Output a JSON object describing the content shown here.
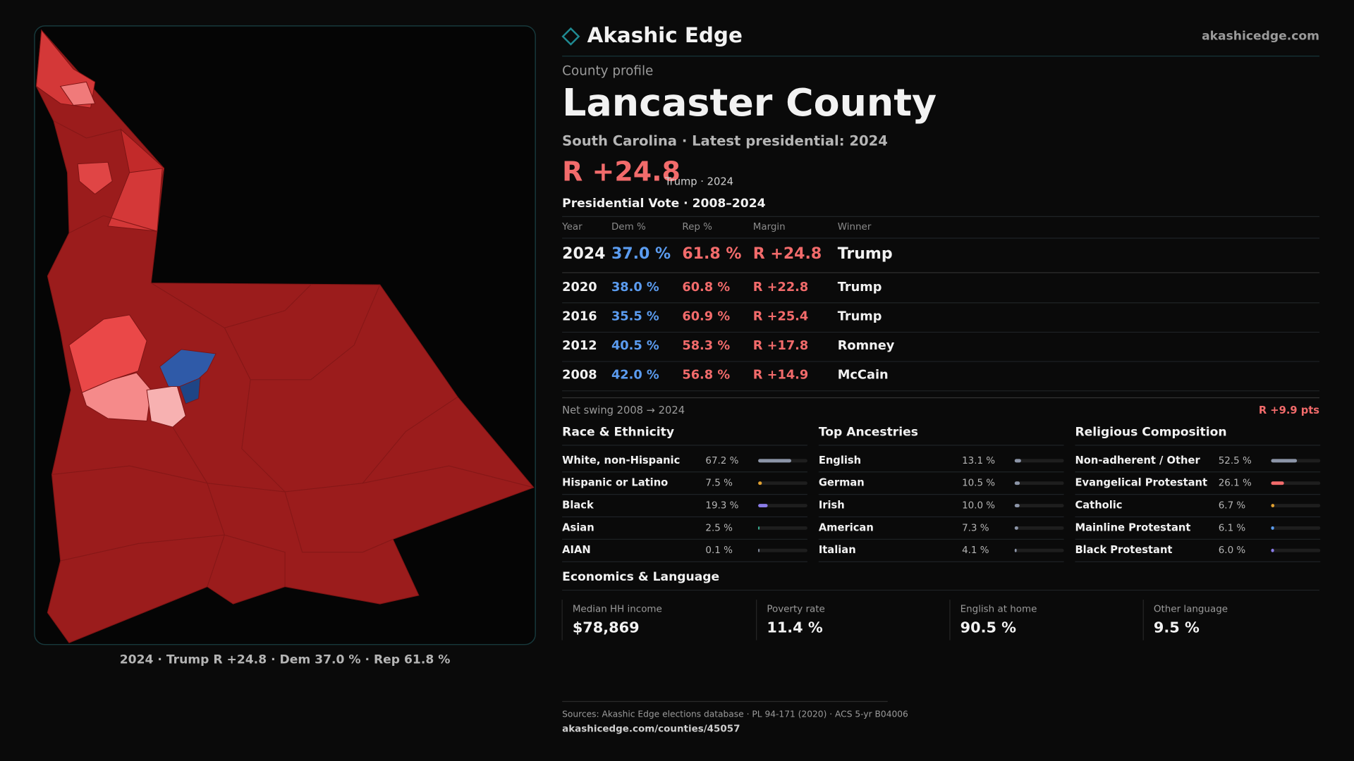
{
  "header": {
    "brand": "Akashic Edge",
    "site": "akashicedge.com"
  },
  "profile": {
    "kicker": "County profile",
    "title": "Lancaster County",
    "subtitle": "South Carolina · Latest presidential: 2024",
    "margin": "R +24.8",
    "margin_note": "Trump · 2024"
  },
  "map": {
    "caption": "2024 · Trump R +24.8 · Dem 37.0 % · Rep 61.8 %"
  },
  "votes": {
    "title": "Presidential Vote · 2008–2024",
    "columns": [
      "Year",
      "Dem %",
      "Rep %",
      "Margin",
      "Winner"
    ],
    "rows": [
      [
        "2024",
        "37.0 %",
        "61.8 %",
        "R +24.8",
        "Trump"
      ],
      [
        "2020",
        "38.0 %",
        "60.8 %",
        "R +22.8",
        "Trump"
      ],
      [
        "2016",
        "35.5 %",
        "60.9 %",
        "R +25.4",
        "Trump"
      ],
      [
        "2012",
        "40.5 %",
        "58.3 %",
        "R +17.8",
        "Romney"
      ],
      [
        "2008",
        "42.0 %",
        "56.8 %",
        "R +14.9",
        "McCain"
      ]
    ]
  },
  "swing": {
    "label": "Net swing 2008 → 2024",
    "value": "R +9.9 pts"
  },
  "demographics": [
    {
      "title": "Race & Ethnicity",
      "xlim": [
        0,
        100
      ],
      "rows": [
        {
          "name": "White, non-Hispanic",
          "pct": 67.2,
          "pct_label": "67.2 %",
          "color": "#8c95a8"
        },
        {
          "name": "Hispanic or Latino",
          "pct": 7.5,
          "pct_label": "7.5 %",
          "color": "#e0a030"
        },
        {
          "name": "Black",
          "pct": 19.3,
          "pct_label": "19.3 %",
          "color": "#8a7ce8"
        },
        {
          "name": "Asian",
          "pct": 2.5,
          "pct_label": "2.5 %",
          "color": "#3cc0a0"
        },
        {
          "name": "AIAN",
          "pct": 0.1,
          "pct_label": "0.1 %",
          "color": "#8c95a8"
        }
      ]
    },
    {
      "title": "Top Ancestries",
      "xlim": [
        0,
        100
      ],
      "rows": [
        {
          "name": "English",
          "pct": 13.1,
          "pct_label": "13.1 %",
          "color": "#8c95a8"
        },
        {
          "name": "German",
          "pct": 10.5,
          "pct_label": "10.5 %",
          "color": "#8c95a8"
        },
        {
          "name": "Irish",
          "pct": 10.0,
          "pct_label": "10.0 %",
          "color": "#8c95a8"
        },
        {
          "name": "American",
          "pct": 7.3,
          "pct_label": "7.3 %",
          "color": "#8c95a8"
        },
        {
          "name": "Italian",
          "pct": 4.1,
          "pct_label": "4.1 %",
          "color": "#8c95a8"
        }
      ]
    },
    {
      "title": "Religious Composition",
      "xlim": [
        0,
        100
      ],
      "rows": [
        {
          "name": "Non-adherent / Other",
          "pct": 52.5,
          "pct_label": "52.5 %",
          "color": "#8c95a8"
        },
        {
          "name": "Evangelical Protestant",
          "pct": 26.1,
          "pct_label": "26.1 %",
          "color": "#f26b6b"
        },
        {
          "name": "Catholic",
          "pct": 6.7,
          "pct_label": "6.7 %",
          "color": "#e0a030"
        },
        {
          "name": "Mainline Protestant",
          "pct": 6.1,
          "pct_label": "6.1 %",
          "color": "#5b9cf0"
        },
        {
          "name": "Black Protestant",
          "pct": 6.0,
          "pct_label": "6.0 %",
          "color": "#8a7ce8"
        }
      ]
    }
  ],
  "economics": {
    "title": "Economics & Language",
    "stats": [
      {
        "label": "Median HH income",
        "value": "$78,869"
      },
      {
        "label": "Poverty rate",
        "value": "11.4 %"
      },
      {
        "label": "English at home",
        "value": "90.5 %"
      },
      {
        "label": "Other language",
        "value": "9.5 %"
      }
    ]
  },
  "footer": {
    "sources": "Sources: Akashic Edge elections database · PL 94-171 (2020) · ACS 5-yr B04006",
    "url": "akashicedge.com/counties/45057"
  }
}
